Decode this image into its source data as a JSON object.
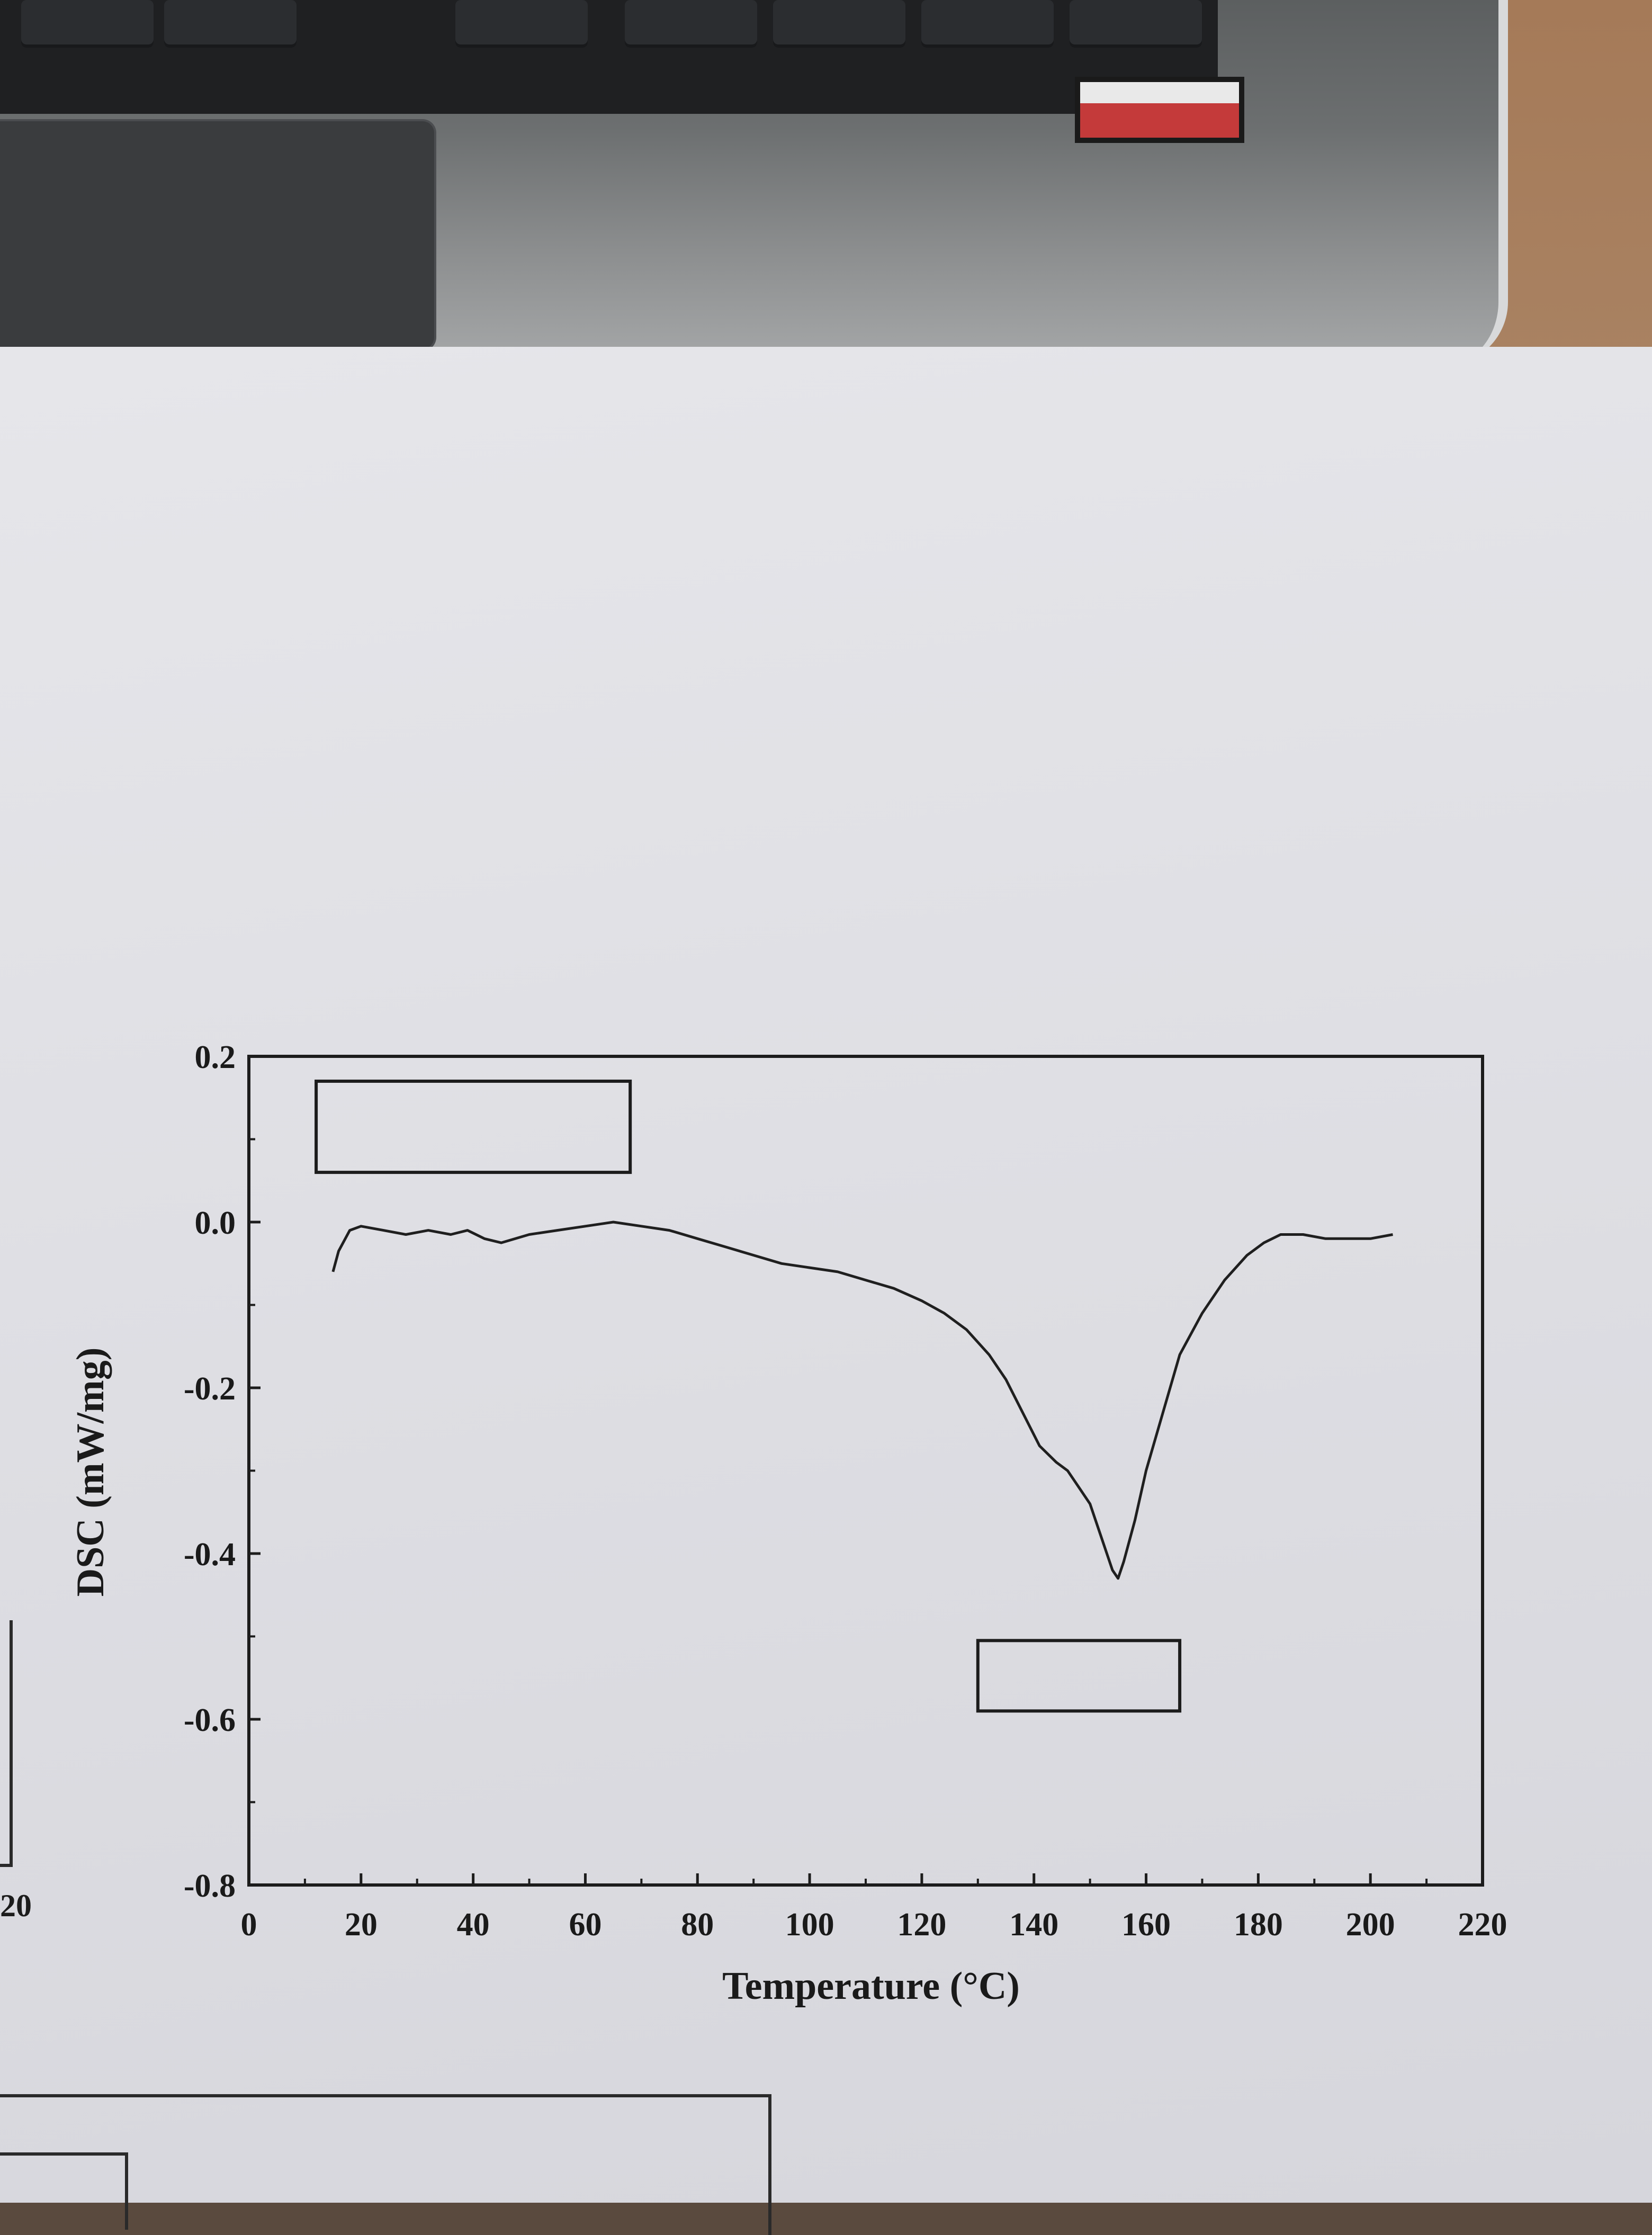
{
  "chart_data": {
    "type": "line",
    "title": "",
    "xlabel": "Temperature (°C)",
    "ylabel": "DSC (mW/mg)",
    "xlim": [
      0,
      220
    ],
    "ylim": [
      -0.8,
      0.2
    ],
    "xticks": [
      0,
      20,
      40,
      60,
      80,
      100,
      120,
      140,
      160,
      180,
      200,
      220
    ],
    "xtick_labels": [
      "0",
      "20",
      "40",
      "60",
      "80",
      "100",
      "120",
      "140",
      "160",
      "180",
      "200",
      "220"
    ],
    "yticks": [
      0.2,
      0.0,
      -0.2,
      -0.4,
      -0.6,
      -0.8
    ],
    "ytick_labels": [
      "0.2",
      "0.0",
      "-0.2",
      "-0.4",
      "-0.6",
      "-0.8"
    ],
    "grid": false,
    "legend": "none",
    "annotations": [
      {
        "kind": "blank-label-box",
        "x": [
          12,
          68
        ],
        "y": [
          0.06,
          0.17
        ]
      },
      {
        "kind": "blank-label-box",
        "x": [
          130,
          166
        ],
        "y": [
          -0.505,
          -0.59
        ]
      }
    ],
    "series": [
      {
        "x": [
          15,
          16,
          18,
          20,
          24,
          28,
          32,
          36,
          39,
          42,
          45,
          50,
          55,
          60,
          65,
          70,
          75,
          80,
          85,
          90,
          95,
          100,
          105,
          110,
          115,
          120,
          124,
          128,
          132,
          135,
          138,
          141,
          144,
          146,
          148,
          150,
          151,
          152,
          153,
          154,
          155,
          156,
          158,
          160,
          163,
          166,
          170,
          174,
          178,
          181,
          184,
          188,
          192,
          196,
          200,
          204
        ],
        "y": [
          -0.06,
          -0.035,
          -0.01,
          -0.005,
          -0.01,
          -0.015,
          -0.01,
          -0.015,
          -0.01,
          -0.02,
          -0.025,
          -0.015,
          -0.01,
          -0.005,
          0.0,
          -0.005,
          -0.01,
          -0.02,
          -0.03,
          -0.04,
          -0.05,
          -0.055,
          -0.06,
          -0.07,
          -0.08,
          -0.095,
          -0.11,
          -0.13,
          -0.16,
          -0.19,
          -0.23,
          -0.27,
          -0.29,
          -0.3,
          -0.32,
          -0.34,
          -0.36,
          -0.38,
          -0.4,
          -0.42,
          -0.43,
          -0.41,
          -0.36,
          -0.3,
          -0.23,
          -0.16,
          -0.11,
          -0.07,
          -0.04,
          -0.025,
          -0.015,
          -0.015,
          -0.02,
          -0.02,
          -0.02,
          -0.015
        ]
      }
    ]
  }
}
